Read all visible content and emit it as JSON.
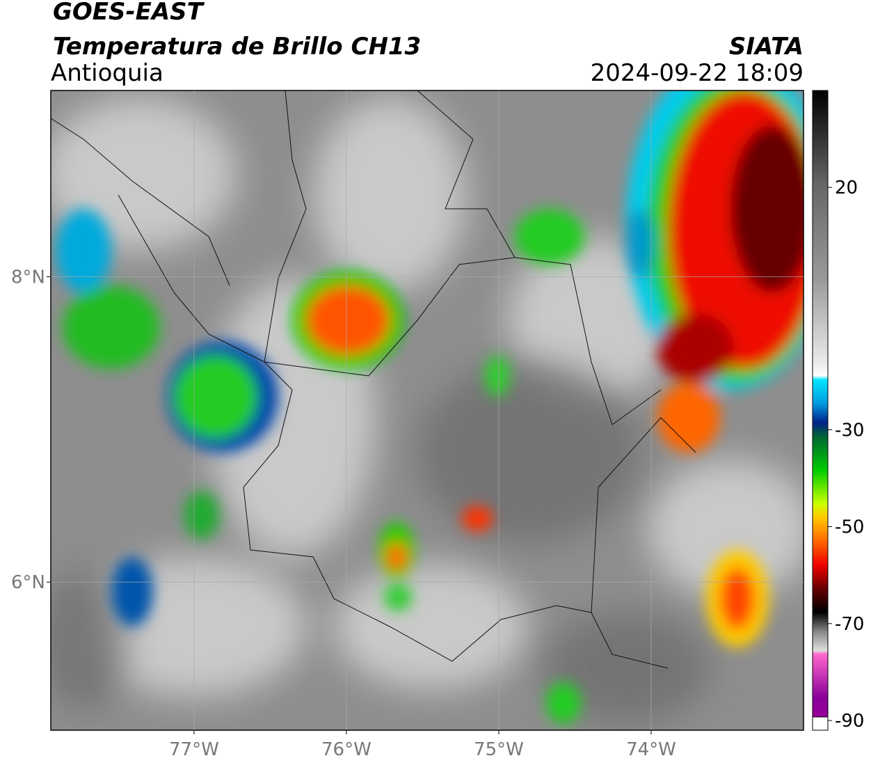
{
  "header": {
    "title": "GOES-EAST",
    "subtitle": "Temperatura de Brillo CH13",
    "region": "Antioquia",
    "agency": "SIATA",
    "datetime": "2024-09-22 18:09"
  },
  "map": {
    "xlim": [
      -77.94,
      -73
    ],
    "ylim": [
      5.03,
      9.22
    ],
    "xticks": [
      {
        "value": -77,
        "label": "77°W"
      },
      {
        "value": -76,
        "label": "76°W"
      },
      {
        "value": -75,
        "label": "75°W"
      },
      {
        "value": -74,
        "label": "74°W"
      }
    ],
    "yticks": [
      {
        "value": 6,
        "label": "6°N"
      },
      {
        "value": 8,
        "label": "8°N"
      }
    ],
    "grid": true
  },
  "colorbar": {
    "lim": [
      -92,
      40
    ],
    "ticks": [
      20,
      -30,
      -50,
      -70,
      -90
    ]
  }
}
